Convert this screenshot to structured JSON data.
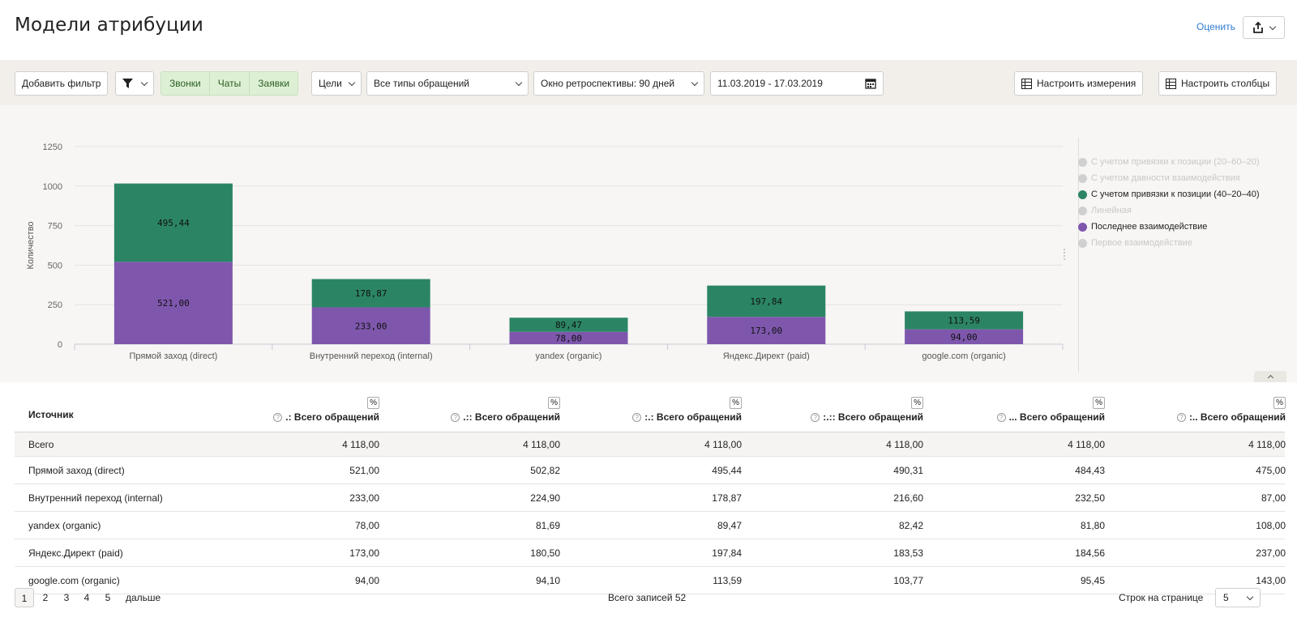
{
  "header": {
    "title": "Модели атрибуции",
    "rate_label": "Оценить",
    "export_icon": "share-export-icon"
  },
  "toolbar": {
    "add_filter": "Добавить фильтр",
    "filter_icon": "funnel-icon",
    "segments": [
      "Звонки",
      "Чаты",
      "Заявки"
    ],
    "goals": "Цели",
    "appeal_types": "Все типы обращений",
    "lookback": "Окно ретроспективы: 90 дней",
    "date_range": "11.03.2019 - 17.03.2019",
    "calendar_icon": "calendar-icon",
    "dimensions": "Настроить измерения",
    "columns": "Настроить столбцы"
  },
  "chart_data": {
    "type": "bar",
    "stacked": true,
    "ylabel": "Количество",
    "ylim": [
      0,
      1250
    ],
    "yticks": [
      "0",
      "250",
      "500",
      "750",
      "1000",
      "1250"
    ],
    "categories": [
      "Прямой заход (direct)",
      "Внутренний переход (internal)",
      "yandex (organic)",
      "Яндекс.Директ (paid)",
      "google.com (organic)"
    ],
    "series": [
      {
        "name": "Последнее взаимодействие",
        "color": "#7e57ad",
        "values": [
          521.0,
          233.0,
          78.0,
          173.0,
          94.0
        ],
        "labels": [
          "521,00",
          "233,00",
          "78,00",
          "173,00",
          "94,00"
        ]
      },
      {
        "name": "С учетом привязки к позиции (40–20–40)",
        "color": "#2b8565",
        "values": [
          495.44,
          178.87,
          89.47,
          197.84,
          113.59
        ],
        "labels": [
          "495,44",
          "178,87",
          "89,47",
          "197,84",
          "113,59"
        ]
      }
    ],
    "legend": [
      {
        "label": "С учетом привязки к позиции (20–60–20)",
        "active": false,
        "color": "#d0d0d0"
      },
      {
        "label": "С учетом давности взаимодействия",
        "active": false,
        "color": "#d0d0d0"
      },
      {
        "label": "С учетом привязки к позиции (40–20–40)",
        "active": true,
        "color": "#2b8565"
      },
      {
        "label": "Линейная",
        "active": false,
        "color": "#d0d0d0"
      },
      {
        "label": "Последнее взаимодействие",
        "active": true,
        "color": "#7e57ad"
      },
      {
        "label": "Первое взаимодействие",
        "active": false,
        "color": "#d0d0d0"
      }
    ],
    "legend_position": "right",
    "grid": true
  },
  "table": {
    "source_header": "Источник",
    "pct_label": "%",
    "columns": [
      ".: Всего обращений",
      ".:: Всего обращений",
      ":.: Всего обращений",
      ":.:: Всего обращений",
      "... Всего обращений",
      ":.. Всего обращений"
    ],
    "total": {
      "label": "Всего",
      "values": [
        "4 118,00",
        "4 118,00",
        "4 118,00",
        "4 118,00",
        "4 118,00",
        "4 118,00"
      ]
    },
    "rows": [
      {
        "source": "Прямой заход (direct)",
        "values": [
          "521,00",
          "502,82",
          "495,44",
          "490,31",
          "484,43",
          "475,00"
        ]
      },
      {
        "source": "Внутренний переход (internal)",
        "values": [
          "233,00",
          "224,90",
          "178,87",
          "216,60",
          "232,50",
          "87,00"
        ]
      },
      {
        "source": "yandex (organic)",
        "values": [
          "78,00",
          "81,69",
          "89,47",
          "82,42",
          "81,80",
          "108,00"
        ]
      },
      {
        "source": "Яндекс.Директ (paid)",
        "values": [
          "173,00",
          "180,50",
          "197,84",
          "183,53",
          "184,56",
          "237,00"
        ]
      },
      {
        "source": "google.com (organic)",
        "values": [
          "94,00",
          "94,10",
          "113,59",
          "103,77",
          "95,45",
          "143,00"
        ]
      }
    ]
  },
  "pager": {
    "pages": [
      "1",
      "2",
      "3",
      "4",
      "5"
    ],
    "active": "1",
    "next_label": "дальше",
    "total_records": "Всего записей 52",
    "rows_label": "Строк на странице",
    "rows_value": "5"
  }
}
